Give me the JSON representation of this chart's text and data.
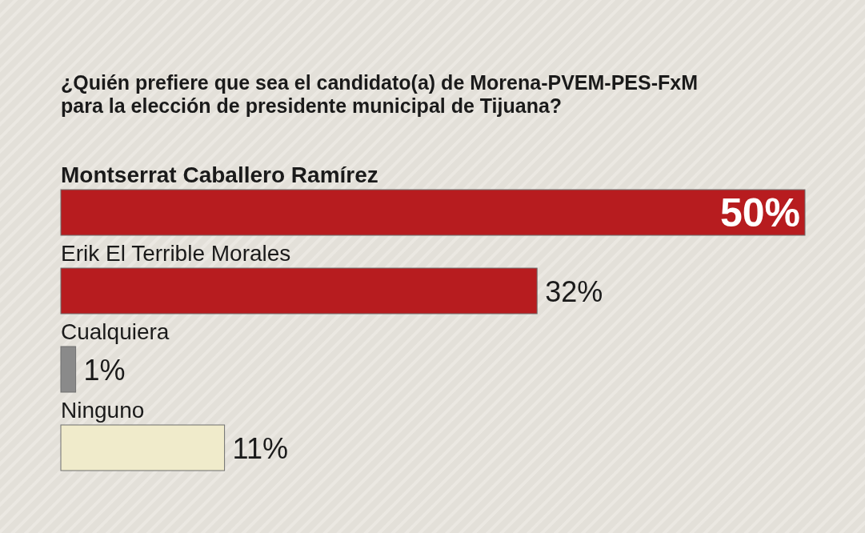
{
  "chart_data": {
    "type": "bar",
    "orientation": "horizontal",
    "title": "¿Quién prefiere que sea el candidato(a) de Morena-PVEM-PES-FxM para la elección de presidente municipal de Tijuana?",
    "categories": [
      "Montserrat Caballero Ramírez",
      "Erik El Terrible Morales",
      "Cualquiera",
      "Ninguno"
    ],
    "values": [
      50,
      32,
      1,
      11
    ],
    "colors": [
      "#b71c1f",
      "#b71c1f",
      "#8a8a8a",
      "#f0ebcb"
    ],
    "value_labels": [
      "50%",
      "32%",
      "1%",
      "11%"
    ]
  }
}
